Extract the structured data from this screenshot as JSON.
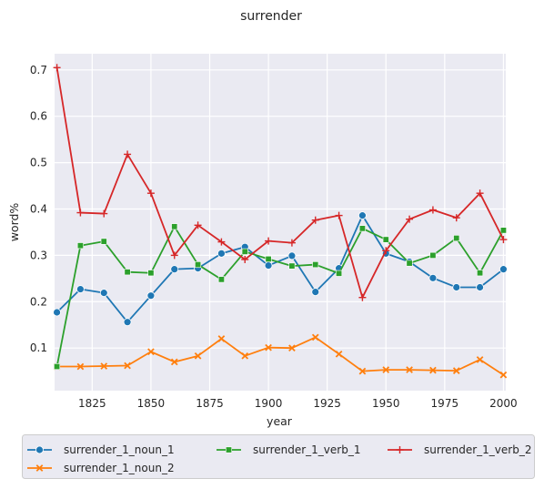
{
  "chart_data": {
    "type": "line",
    "title": "surrender",
    "xlabel": "year",
    "ylabel": "word%",
    "xlim": [
      1809,
      2001
    ],
    "ylim": [
      0.008,
      0.735
    ],
    "xticks": [
      1825,
      1850,
      1875,
      1900,
      1925,
      1950,
      1975,
      2000
    ],
    "yticks": [
      0.1,
      0.2,
      0.3,
      0.4,
      0.5,
      0.6,
      0.7
    ],
    "grid": true,
    "legend_position": "bottom",
    "x": [
      1810,
      1820,
      1830,
      1840,
      1850,
      1860,
      1870,
      1880,
      1890,
      1900,
      1910,
      1920,
      1930,
      1940,
      1950,
      1960,
      1970,
      1980,
      1990,
      2000
    ],
    "series": [
      {
        "name": "surrender_1_noun_1",
        "color": "#1f77b4",
        "marker": "circle",
        "values": [
          0.177,
          0.227,
          0.219,
          0.156,
          0.213,
          0.27,
          0.272,
          0.304,
          0.318,
          0.278,
          0.299,
          0.221,
          0.272,
          0.386,
          0.304,
          0.286,
          0.251,
          0.231,
          0.231,
          0.27
        ]
      },
      {
        "name": "surrender_1_noun_2",
        "color": "#ff7f0e",
        "marker": "x",
        "values": [
          0.06,
          0.06,
          0.061,
          0.062,
          0.092,
          0.07,
          0.083,
          0.12,
          0.083,
          0.101,
          0.1,
          0.123,
          0.087,
          0.05,
          0.053,
          0.053,
          0.052,
          0.051,
          0.075,
          0.042
        ]
      },
      {
        "name": "surrender_1_verb_1",
        "color": "#2ca02c",
        "marker": "square",
        "values": [
          0.06,
          0.321,
          0.33,
          0.264,
          0.262,
          0.362,
          0.28,
          0.248,
          0.308,
          0.292,
          0.277,
          0.28,
          0.261,
          0.358,
          0.334,
          0.283,
          0.3,
          0.337,
          0.262,
          0.354
        ]
      },
      {
        "name": "surrender_1_verb_2",
        "color": "#d62728",
        "marker": "plus",
        "values": [
          0.705,
          0.392,
          0.39,
          0.518,
          0.434,
          0.3,
          0.365,
          0.329,
          0.291,
          0.331,
          0.327,
          0.376,
          0.386,
          0.209,
          0.31,
          0.378,
          0.398,
          0.381,
          0.434,
          0.334
        ]
      }
    ]
  }
}
